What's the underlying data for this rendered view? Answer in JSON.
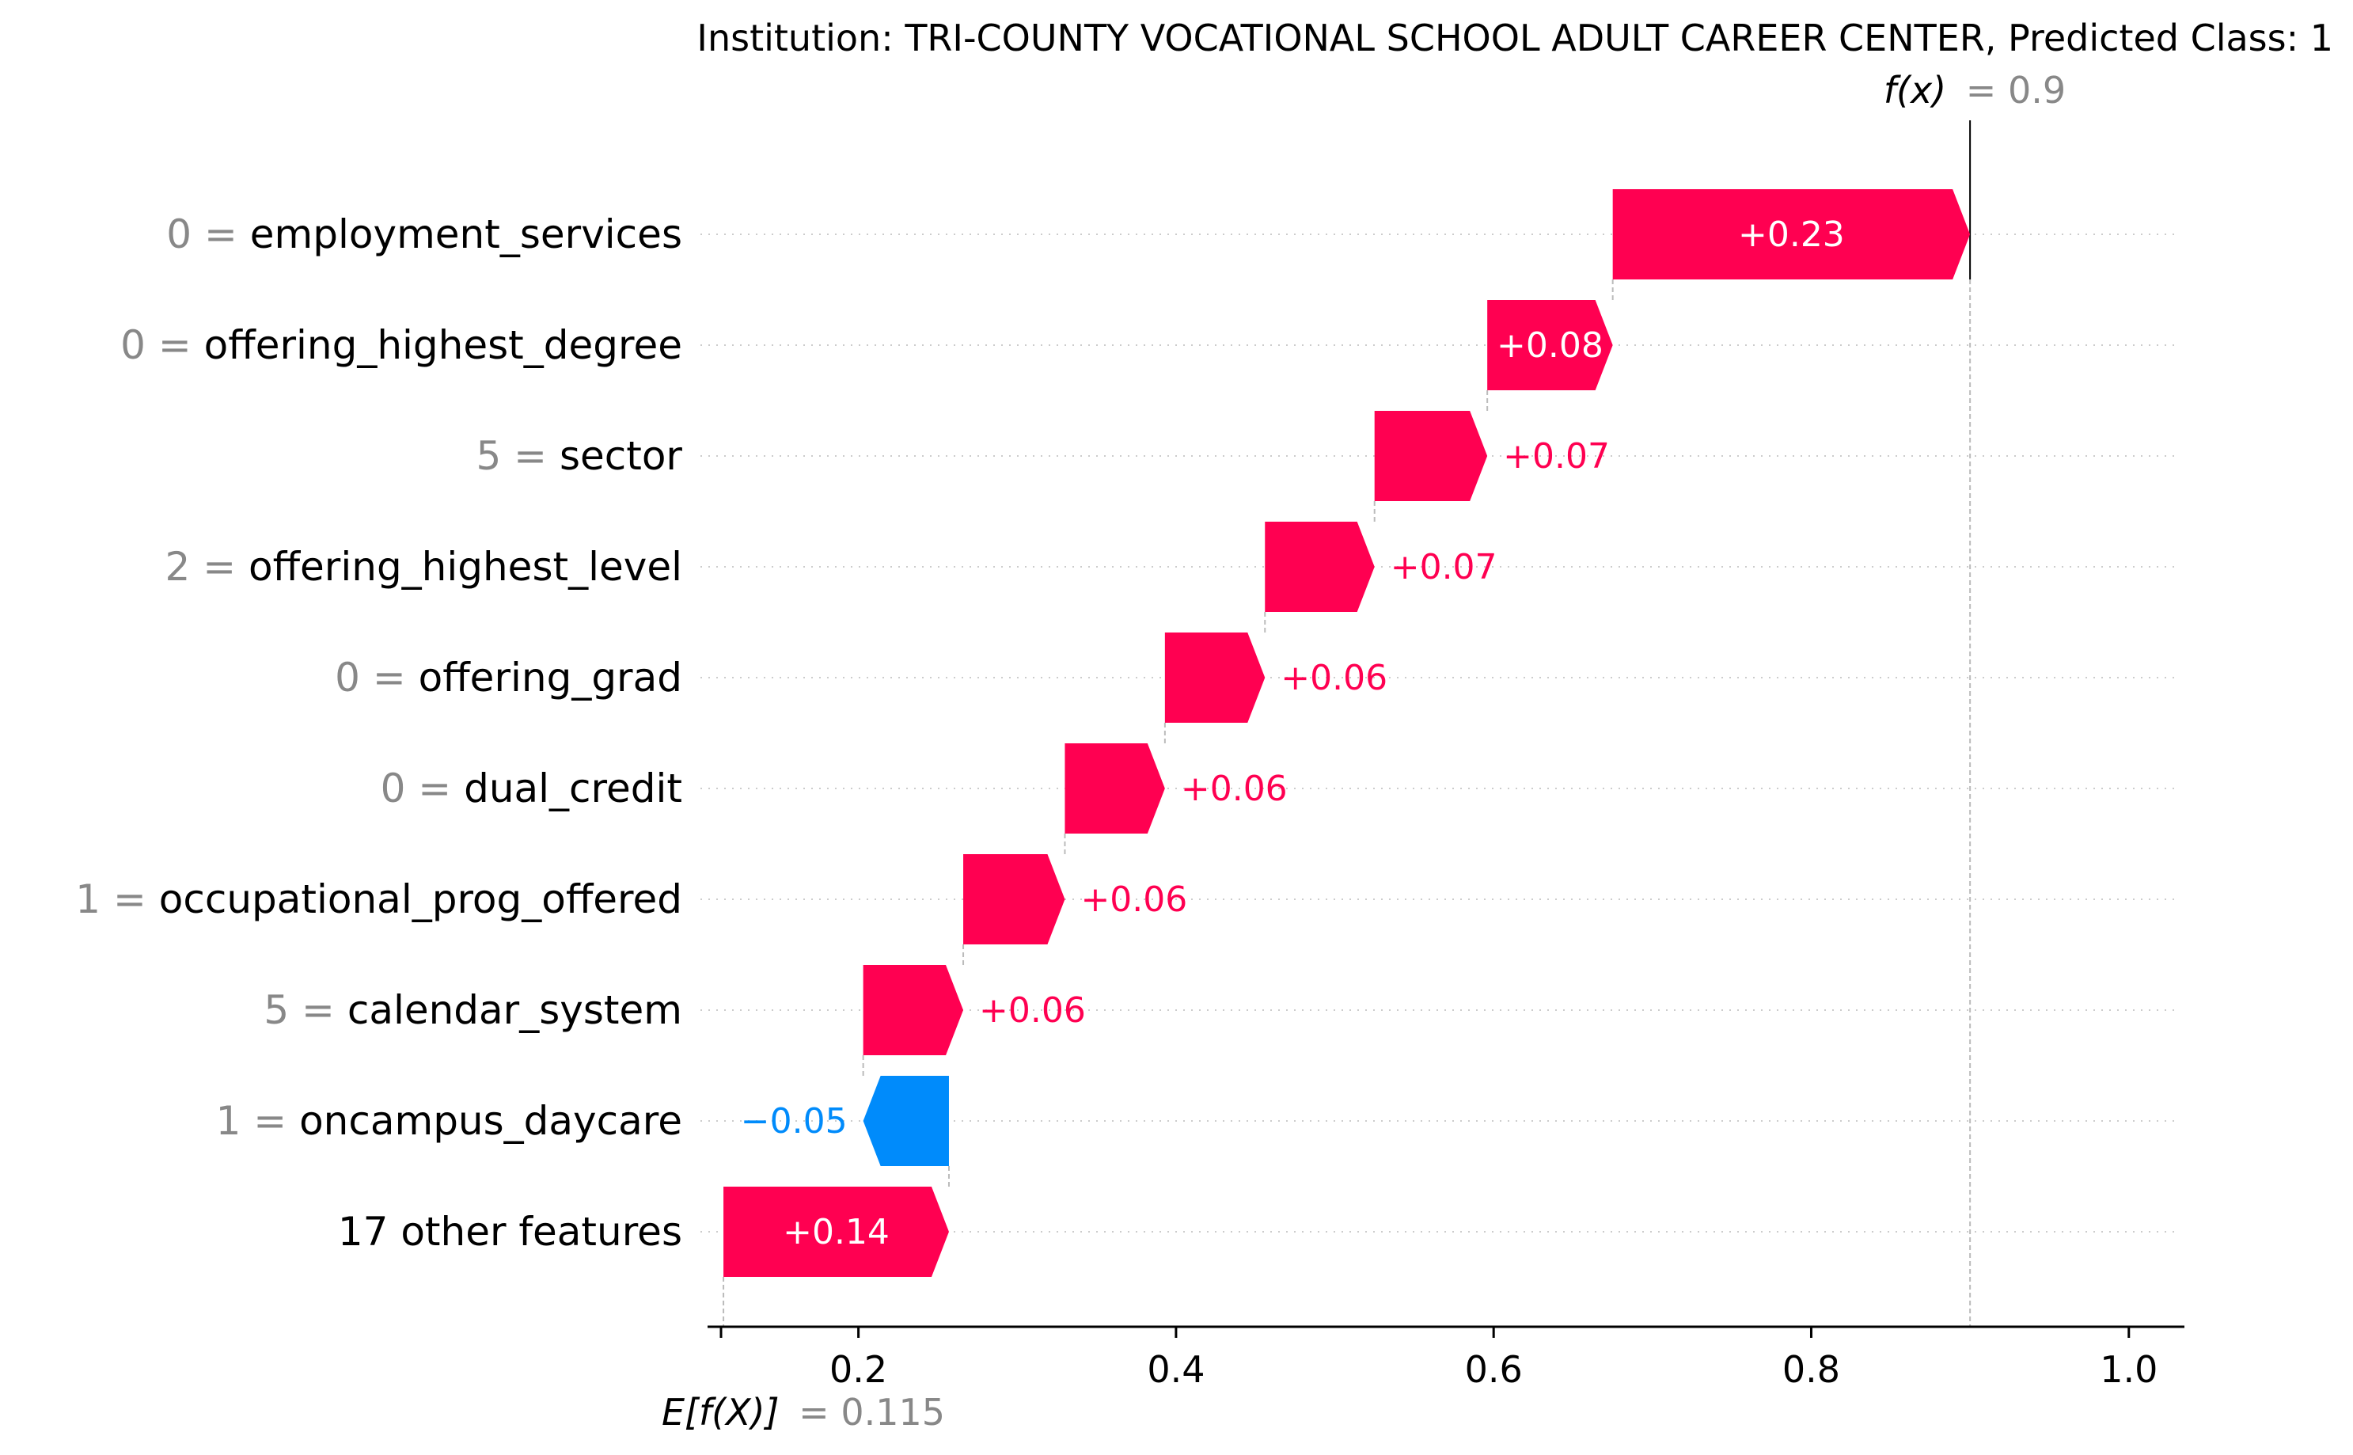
{
  "chart_data": {
    "type": "waterfall",
    "title": "Institution: TRI-COUNTY VOCATIONAL SCHOOL ADULT CAREER CENTER, Predicted Class: 1",
    "fx": {
      "label": "f(x)",
      "value_text": "= 0.9",
      "value": 0.9
    },
    "base": {
      "label": "E[f(X)]",
      "value_text": "= 0.115",
      "value": 0.115
    },
    "xlim": [
      0.105,
      1.035
    ],
    "x_ticks": [
      {
        "value": 0.2,
        "label": "0.2"
      },
      {
        "value": 0.4,
        "label": "0.4"
      },
      {
        "value": 0.6,
        "label": "0.6"
      },
      {
        "value": 0.8,
        "label": "0.8"
      },
      {
        "value": 1.0,
        "label": "1.0"
      }
    ],
    "features": [
      {
        "value_text": "0 =",
        "name": "employment_services",
        "start": 0.675,
        "end": 0.9,
        "label": "+0.23"
      },
      {
        "value_text": "0 =",
        "name": "offering_highest_degree",
        "start": 0.596,
        "end": 0.675,
        "label": "+0.08"
      },
      {
        "value_text": "5 =",
        "name": "sector",
        "start": 0.525,
        "end": 0.596,
        "label": "+0.07"
      },
      {
        "value_text": "2 =",
        "name": "offering_highest_level",
        "start": 0.456,
        "end": 0.525,
        "label": "+0.07"
      },
      {
        "value_text": "0 =",
        "name": "offering_grad",
        "start": 0.393,
        "end": 0.456,
        "label": "+0.06"
      },
      {
        "value_text": "0 =",
        "name": "dual_credit",
        "start": 0.33,
        "end": 0.393,
        "label": "+0.06"
      },
      {
        "value_text": "1 =",
        "name": "occupational_prog_offered",
        "start": 0.266,
        "end": 0.33,
        "label": "+0.06"
      },
      {
        "value_text": "5 =",
        "name": "calendar_system",
        "start": 0.203,
        "end": 0.266,
        "label": "+0.06"
      },
      {
        "value_text": "1 =",
        "name": "oncampus_daycare",
        "start": 0.257,
        "end": 0.203,
        "label": "−0.05"
      },
      {
        "value_text": "",
        "name": "17 other features",
        "start": 0.115,
        "end": 0.257,
        "label": "+0.14"
      }
    ],
    "colors": {
      "positive": "#ff0051",
      "negative": "#008bfb",
      "label_gray": "#888888",
      "text": "#000000"
    }
  }
}
